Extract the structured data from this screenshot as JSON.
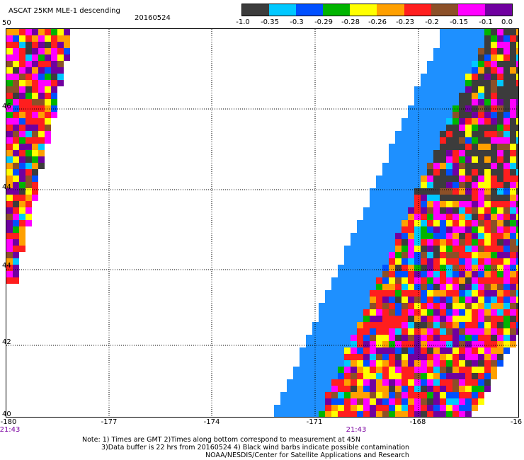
{
  "header": {
    "title": "ASCAT 25KM MLE-1 descending",
    "date": "20160524"
  },
  "colorbar": {
    "colors": [
      "#3c3c3c",
      "#00c8ff",
      "#0050ff",
      "#00b400",
      "#ffff00",
      "#ffa000",
      "#ff1e1e",
      "#8c5028",
      "#ff00ff",
      "#7000a0"
    ],
    "labels": [
      "-1.0",
      "-0.35",
      "-0.3",
      "-0.29",
      "-0.28",
      "-0.26",
      "-0.23",
      "-0.2",
      "-0.15",
      "-0.1",
      "0.0"
    ]
  },
  "map": {
    "lat_labels": [
      "50",
      "46",
      "44",
      "44",
      "42",
      "40"
    ],
    "lon_labels": [
      "-180",
      "-177",
      "-174",
      "-171",
      "-168",
      "-16"
    ],
    "time_labels": [
      "21:43",
      "21:43"
    ],
    "swath_fill_color": "#1e90ff",
    "grid_color": "#000000"
  },
  "notes": {
    "line1": "Note: 1) Times are GMT 2)Times along bottom correspond to measurement at 45N",
    "line2": "3)Data buffer is 22 hrs from 20160524 4) Black wind barbs indicate possible contamination",
    "line3": "NOAA/NESDIS/Center for Satellite Applications and Research"
  }
}
